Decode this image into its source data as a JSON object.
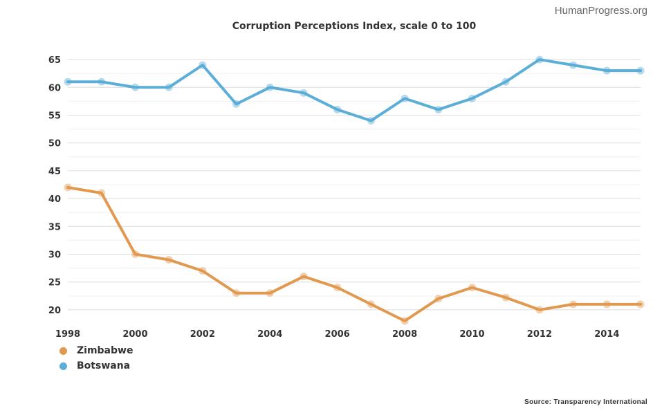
{
  "header": {
    "credit": "HumanProgress.org"
  },
  "footer": {
    "source": "Source: Transparency International"
  },
  "chart_data": {
    "type": "line",
    "title": "Corruption Perceptions Index, scale 0 to 100",
    "xlabel": "",
    "ylabel": "",
    "x": [
      1998,
      1999,
      2000,
      2001,
      2002,
      2003,
      2004,
      2005,
      2006,
      2007,
      2008,
      2009,
      2010,
      2011,
      2012,
      2013,
      2014,
      2015
    ],
    "x_tick_labels": [
      "1998",
      "2000",
      "2002",
      "2004",
      "2006",
      "2008",
      "2010",
      "2012",
      "2014"
    ],
    "y_tick_labels": [
      "20",
      "25",
      "30",
      "35",
      "40",
      "45",
      "50",
      "55",
      "60",
      "65"
    ],
    "ylim": [
      18,
      67
    ],
    "xlim": [
      1998,
      2015
    ],
    "grid": true,
    "legend_position": "bottom-left",
    "series": [
      {
        "name": "Zimbabwe",
        "color": "#E0994F",
        "values": [
          42,
          41,
          30,
          29,
          27,
          23,
          23,
          26,
          24,
          21,
          18,
          22,
          24,
          22.2,
          20,
          21,
          21,
          21
        ]
      },
      {
        "name": "Botswana",
        "color": "#5BAED8",
        "values": [
          61,
          61,
          60,
          60,
          64,
          57,
          60,
          59,
          56,
          54,
          58,
          56,
          58,
          61,
          65,
          64,
          63,
          63
        ]
      }
    ]
  }
}
